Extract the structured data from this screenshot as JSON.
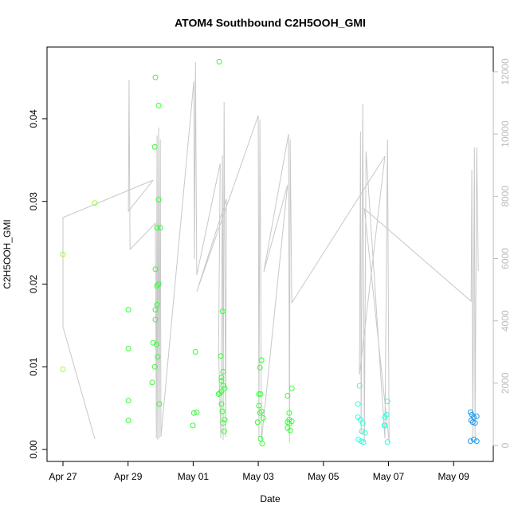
{
  "chart_data": {
    "type": "scatter",
    "title": "ATOM4 Southbound C2H5OOH_GMI",
    "xlabel": "Date",
    "ylabel": "C2H5OOH_GMI",
    "xlim": [
      -0.49,
      13.22
    ],
    "xticks": [
      {
        "value": 0,
        "label": "Apr 27"
      },
      {
        "value": 2,
        "label": "Apr 29"
      },
      {
        "value": 4,
        "label": "May 01"
      },
      {
        "value": 6,
        "label": "May 03"
      },
      {
        "value": 8,
        "label": "May 05"
      },
      {
        "value": 10,
        "label": "May 07"
      },
      {
        "value": 12,
        "label": "May 09"
      }
    ],
    "ylim": [
      -0.00145,
      0.04867
    ],
    "yticks": [
      {
        "value": 0,
        "label": "0.00"
      },
      0.01,
      0.02,
      0.03,
      0.04
    ],
    "y2lim": [
      -512,
      12793
    ],
    "y2ticks": [
      0,
      2000,
      4000,
      6000,
      8000,
      10000,
      12000
    ],
    "series": [
      {
        "color": "#99ff33",
        "x": [
          0,
          0,
          0.98
        ],
        "values": [
          0.0236,
          0.0097,
          0.0298
        ]
      },
      {
        "color": "#33ff33",
        "x": [
          2.01,
          2.01,
          2.01,
          2.01,
          2.84,
          2.94,
          2.82,
          2.94,
          2.89,
          2.99,
          2.84,
          2.94,
          2.89,
          2.84,
          2.89,
          2.84,
          2.77,
          2.87,
          2.91,
          2.82,
          2.74,
          2.96,
          4.07,
          4.02,
          4.11,
          3.99,
          4.8,
          4.9,
          4.85,
          4.87,
          4.92,
          4.87,
          4.92,
          4.97,
          4.82,
          4.78,
          4.87,
          4.87,
          4.9,
          4.97,
          4.92,
          4.95,
          6.1,
          6.05,
          6.02,
          6.07,
          6.02,
          6.1,
          6.05,
          6.15,
          5.98,
          6.07,
          6.12,
          6.9,
          7.03,
          6.95,
          6.95,
          6.9,
          7.03,
          6.9,
          6.98,
          6.95
        ],
        "values": [
          0.0169,
          0.0122,
          0.0059,
          0.0035,
          0.045,
          0.0416,
          0.0366,
          0.0302,
          0.0268,
          0.0268,
          0.0218,
          0.02,
          0.0198,
          0.0169,
          0.0175,
          0.0157,
          0.0129,
          0.0127,
          0.0112,
          0.01,
          0.0081,
          0.0055,
          0.0118,
          0.0044,
          0.0045,
          0.0029,
          0.0469,
          0.0167,
          0.0113,
          0.0087,
          0.0094,
          0.0083,
          0.0077,
          0.0074,
          0.0068,
          0.0067,
          0.007,
          0.0055,
          0.0046,
          0.0036,
          0.0032,
          0.0022,
          0.0108,
          0.0099,
          0.0067,
          0.0067,
          0.0053,
          0.0046,
          0.0044,
          0.0038,
          0.0033,
          0.0013,
          0.0007,
          0.0065,
          0.0074,
          0.0044,
          0.0036,
          0.0033,
          0.0034,
          0.0026,
          0.0023,
          0.0031
        ]
      },
      {
        "color": "#33ffdd",
        "x": [
          9.11,
          9.06,
          9.06,
          9.14,
          9.21,
          9.18,
          9.08,
          9.16,
          9.23,
          9.28,
          9.97,
          9.94,
          9.89,
          9.87,
          9.89,
          9.97
        ],
        "values": [
          0.0077,
          0.0055,
          0.0039,
          0.0036,
          0.0032,
          0.0022,
          0.0012,
          0.001,
          0.0009,
          0.002,
          0.0058,
          0.0042,
          0.0039,
          0.0029,
          0.0029,
          0.0009
        ]
      },
      {
        "color": "#2299ee",
        "x": [
          12.52,
          12.56,
          12.62,
          12.71,
          12.54,
          12.59,
          12.66,
          12.62,
          12.71,
          12.52
        ],
        "values": [
          0.0045,
          0.0042,
          0.0039,
          0.004,
          0.0035,
          0.0033,
          0.0032,
          0.0012,
          0.001,
          0.001
        ]
      },
      {
        "type": "line",
        "axis": "y2",
        "color": "#c8c8c8",
        "x": [
          0.98,
          0,
          0,
          2.77,
          2.01,
          2.03,
          2.06,
          2.84,
          2.87,
          2.89,
          2.91,
          2.94,
          2.96,
          2.99,
          3.01,
          4.02,
          4.04,
          4.07,
          4.11,
          4.83,
          4.78,
          4.85,
          4.9,
          4.92,
          4.95,
          5.0,
          5.02,
          4.11,
          6.0,
          6.02,
          6.05,
          6.1,
          6.9,
          6.17,
          6.93,
          6.96,
          6.98,
          7.03,
          9.89,
          9.11,
          9.14,
          9.16,
          9.21,
          9.26,
          9.31,
          9.89,
          9.97,
          10.02,
          9.26,
          12.54,
          12.56,
          12.59,
          12.64,
          12.66,
          12.71,
          12.76
        ],
        "values": [
          205,
          3812,
          7317,
          8520,
          7522,
          11744,
          6294,
          7138,
          230,
          9953,
          179,
          10208,
          230,
          9825,
          281,
          11692,
          5987,
          12306,
          5475,
          9057,
          3045,
          230,
          9313,
          179,
          11027,
          281,
          7906,
          4938,
          10592,
          281,
          10464,
          179,
          8366,
          5578,
          10004,
          102,
          9825,
          4580,
          9287,
          2277,
          10080,
          358,
          10976,
          102,
          9441,
          230,
          9825,
          102,
          7599,
          4631,
          8852,
          154,
          9569,
          230,
          9569,
          5603
        ]
      }
    ]
  }
}
